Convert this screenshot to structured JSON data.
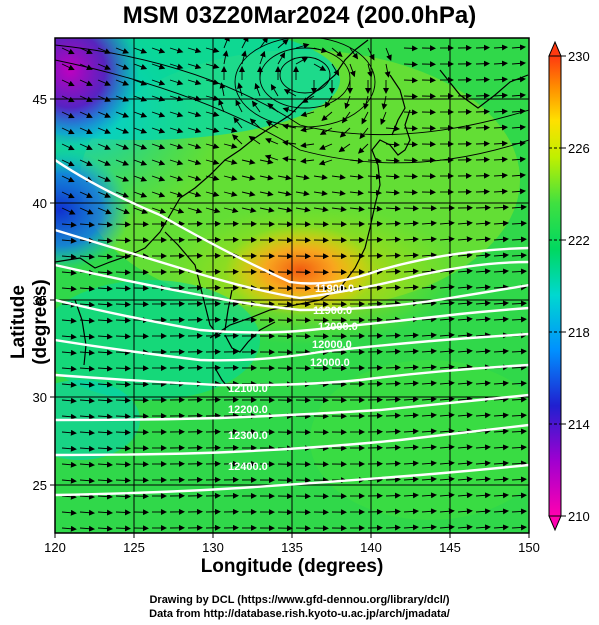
{
  "title": "MSM 03Z20Mar2024 (200.0hPa)",
  "axes": {
    "xlabel": "Longitude (degrees)",
    "ylabel": "Latitude  (degrees)",
    "xticks": [
      "120",
      "125",
      "130",
      "135",
      "140",
      "145",
      "150"
    ],
    "yticks": [
      "25",
      "30",
      "35",
      "40",
      "45"
    ],
    "xlim": [
      120,
      150
    ],
    "ylim": [
      22.4,
      47.6
    ]
  },
  "colorbar": {
    "ticks": [
      "230",
      "226",
      "222",
      "218",
      "214",
      "210"
    ],
    "range": [
      210,
      230
    ]
  },
  "contour_labels": [
    "11900.0",
    "11900.0",
    "12000.0",
    "12000.0",
    "12000.0",
    "12100.0",
    "12200.0",
    "12300.0",
    "12400.0"
  ],
  "credits": {
    "line1": "Drawing by DCL (https://www.gfd-dennou.org/library/dcl/)",
    "line2": "Data from http://database.rish.kyoto-u.ac.jp/arch/jmadata/"
  },
  "chart_data": {
    "type": "heatmap",
    "title": "MSM 03Z20Mar2024 (200.0hPa)",
    "xlabel": "Longitude (degrees)",
    "ylabel": "Latitude  (degrees)",
    "xlim": [
      120,
      150
    ],
    "ylim": [
      22.4,
      47.6
    ],
    "colorbar_range": [
      210,
      230
    ],
    "colorbar_ticks": [
      210,
      214,
      218,
      222,
      226,
      230
    ],
    "overlays": [
      "wind vectors",
      "geopotential height contours",
      "coastlines",
      "lat/lon grid"
    ]
  }
}
